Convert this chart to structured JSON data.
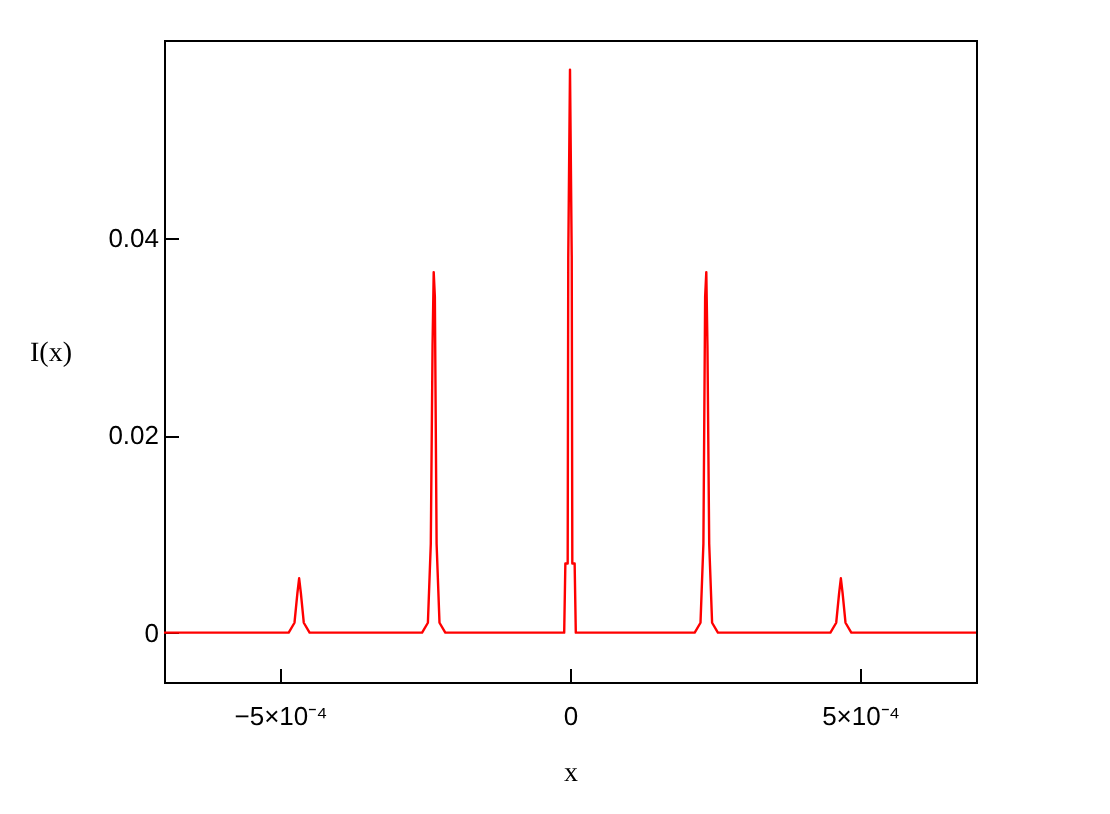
{
  "chart_data": {
    "type": "line",
    "xlabel": "x",
    "ylabel": "I(x)",
    "x": [
      -0.0007,
      -0.000485,
      -0.000475,
      -0.00047,
      -0.000467,
      -0.000464,
      -0.000459,
      -0.000449,
      -0.000255,
      -0.000245,
      -0.00024,
      -0.000237,
      -0.000235,
      -0.000233,
      -0.00023,
      -0.000225,
      -0.000215,
      -1e-05,
      -8e-06,
      -4e-06,
      -3e-06,
      0,
      3e-06,
      4e-06,
      8e-06,
      1e-05,
      0.000215,
      0.000225,
      0.00023,
      0.000233,
      0.000235,
      0.000237,
      0.00024,
      0.000245,
      0.000255,
      0.000449,
      0.000459,
      0.000464,
      0.000467,
      0.00047,
      0.000475,
      0.000485,
      0.0007
    ],
    "series": [
      {
        "color": "#ff0000",
        "values": [
          0,
          0,
          0.001,
          0.004,
          0.0055,
          0.004,
          0.001,
          0,
          0,
          0.001,
          0.009,
          0.029,
          0.0365,
          0.034,
          0.009,
          0.001,
          0,
          0,
          0.007,
          0.007,
          0.038,
          0.057,
          0.038,
          0.007,
          0.007,
          0,
          0,
          0.001,
          0.009,
          0.034,
          0.0365,
          0.029,
          0.009,
          0.001,
          0,
          0,
          0.001,
          0.004,
          0.0055,
          0.004,
          0.001,
          0,
          0
        ]
      }
    ],
    "xlim": [
      -0.0007,
      0.0007
    ],
    "xticks": [
      {
        "value": -0.0005,
        "label": "−5×10⁻⁴"
      },
      0,
      {
        "value": 0.0005,
        "label": "5×10⁻⁴"
      }
    ],
    "ylim": [
      -0.005,
      0.06
    ],
    "yticks": [
      0,
      0.02,
      0.04
    ],
    "grid": false,
    "marker": "none",
    "line_style": "solid"
  }
}
